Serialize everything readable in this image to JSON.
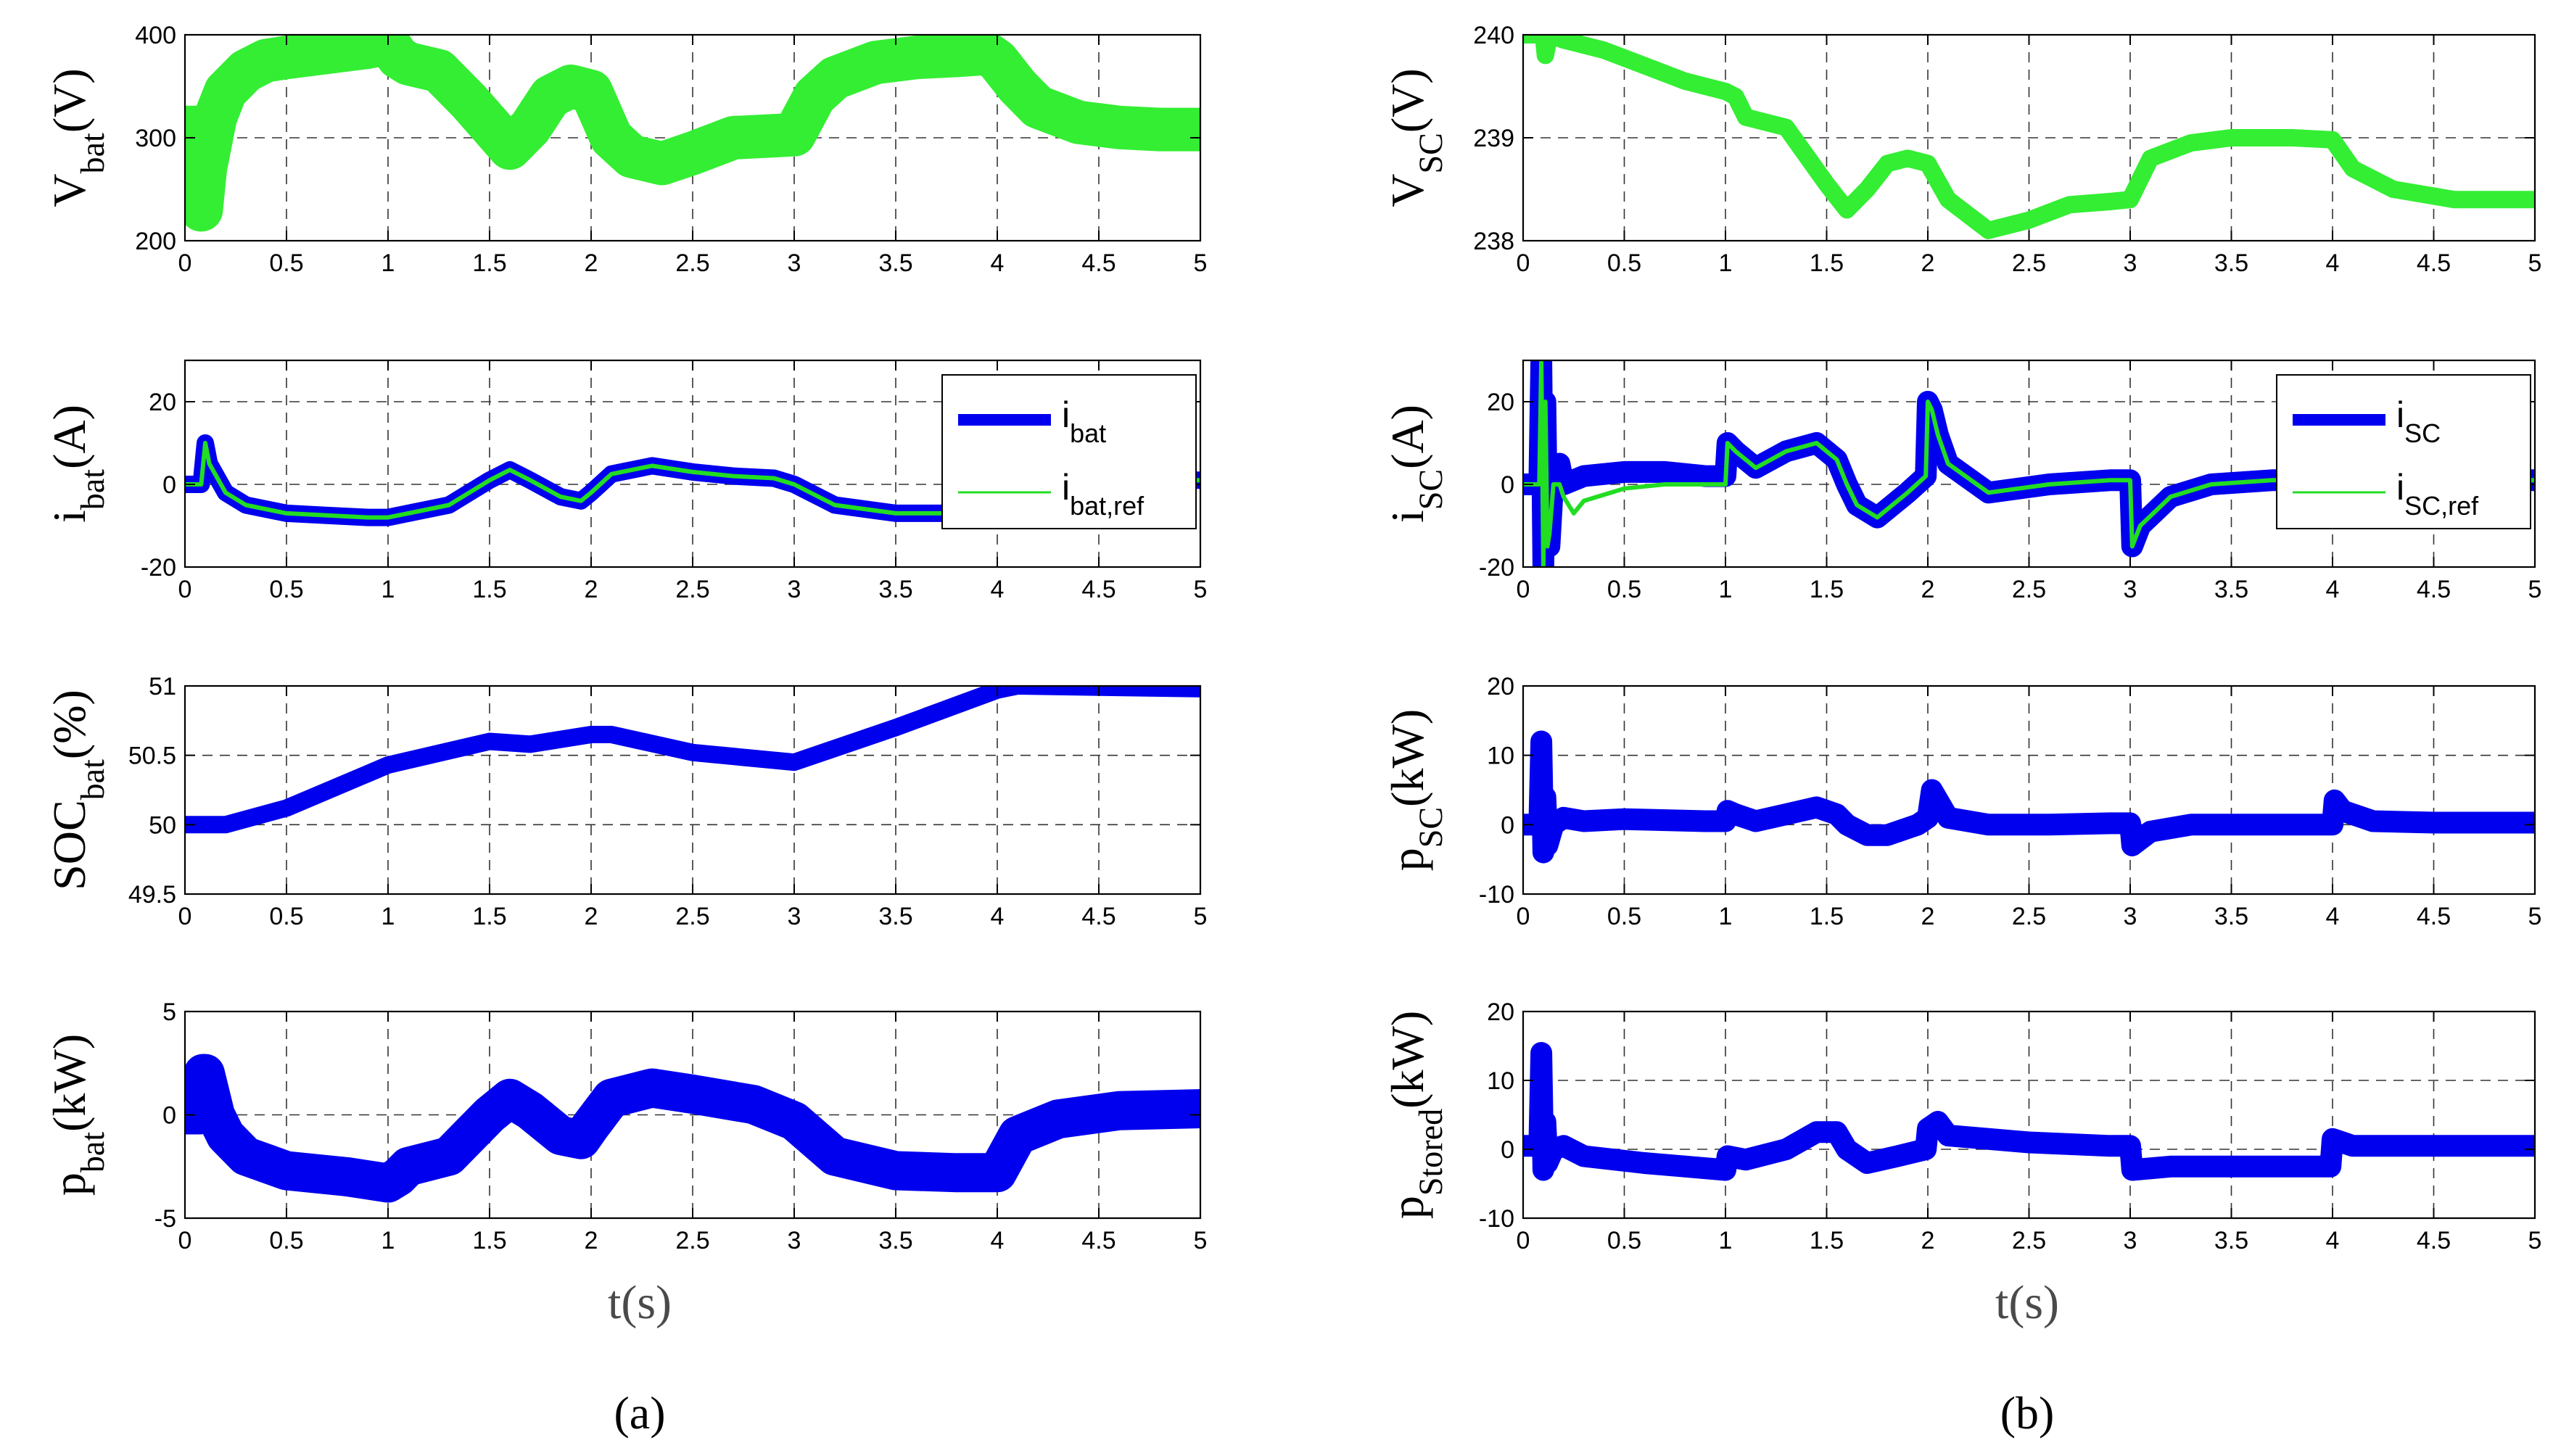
{
  "colors": {
    "battery_trace": "#33ee33",
    "blue_trace": "#0000ee",
    "green_ref": "#22dd22",
    "grid": "#333333"
  },
  "panel_labels": {
    "a": "(a)",
    "b": "(b)"
  },
  "xlabel": "t(s)",
  "chart_data": [
    {
      "type": "line",
      "panel": "a",
      "row": 1,
      "ylabel": {
        "main": "V",
        "sub": "bat",
        "unit": "(V)"
      },
      "xlim": [
        0,
        5
      ],
      "ylim": [
        200,
        400
      ],
      "xticks": [
        "0",
        "0.5",
        "1",
        "1.5",
        "2",
        "2.5",
        "3",
        "3.5",
        "4",
        "4.5",
        "5"
      ],
      "yticks": [
        "200",
        "300",
        "400"
      ],
      "grid": true,
      "series": [
        {
          "color": "#33ee33",
          "band": 10,
          "x": [
            0,
            0.07,
            0.08,
            0.1,
            0.15,
            0.2,
            0.3,
            0.4,
            0.5,
            0.7,
            0.9,
            1.0,
            1.05,
            1.1,
            1.25,
            1.4,
            1.6,
            1.7,
            1.8,
            1.9,
            2.0,
            2.1,
            2.2,
            2.35,
            2.5,
            2.7,
            2.9,
            3.0,
            3.1,
            3.2,
            3.4,
            3.6,
            3.8,
            3.95,
            4.0,
            4.1,
            4.2,
            4.4,
            4.6,
            4.8,
            5.0
          ],
          "y": [
            310,
            310,
            230,
            270,
            320,
            345,
            365,
            375,
            378,
            383,
            388,
            392,
            378,
            372,
            365,
            335,
            290,
            310,
            340,
            350,
            345,
            300,
            282,
            275,
            285,
            300,
            302,
            303,
            340,
            358,
            373,
            378,
            380,
            382,
            375,
            350,
            330,
            315,
            310,
            308,
            308
          ]
        }
      ]
    },
    {
      "type": "line",
      "panel": "a",
      "row": 2,
      "ylabel": {
        "main": "i",
        "sub": "bat",
        "unit": "(A)"
      },
      "xlim": [
        0,
        5
      ],
      "ylim": [
        -20,
        30
      ],
      "xticks": [
        "0",
        "0.5",
        "1",
        "1.5",
        "2",
        "2.5",
        "3",
        "3.5",
        "4",
        "4.5",
        "5"
      ],
      "yticks": [
        "-20",
        "0",
        "20"
      ],
      "grid": true,
      "legend": {
        "position": "top-right",
        "entries": [
          {
            "main": "i",
            "sub": "bat"
          },
          {
            "main": "i",
            "sub": "bat,ref"
          }
        ]
      },
      "series": [
        {
          "color": "#0000ee",
          "band": 4,
          "x": [
            0,
            0.08,
            0.1,
            0.12,
            0.2,
            0.3,
            0.5,
            0.7,
            0.9,
            1.0,
            1.1,
            1.3,
            1.5,
            1.6,
            1.7,
            1.85,
            1.95,
            2.0,
            2.1,
            2.3,
            2.5,
            2.7,
            2.9,
            3.0,
            3.2,
            3.5,
            3.8,
            4.0,
            4.2,
            4.5,
            4.8,
            5.0
          ],
          "y": [
            0,
            0,
            10,
            5,
            -2,
            -5,
            -7,
            -7.5,
            -8,
            -8,
            -7,
            -5,
            1,
            3.5,
            1,
            -3,
            -4,
            -2,
            2.5,
            4.5,
            3,
            2,
            1.5,
            0,
            -5,
            -7,
            -7,
            -7,
            -3,
            -1,
            1,
            1
          ]
        },
        {
          "color": "#22dd22",
          "band": 1,
          "x": [
            0,
            0.08,
            0.1,
            0.12,
            0.2,
            0.3,
            0.5,
            0.7,
            0.9,
            1.0,
            1.1,
            1.3,
            1.5,
            1.6,
            1.7,
            1.85,
            1.95,
            2.0,
            2.1,
            2.3,
            2.5,
            2.7,
            2.9,
            3.0,
            3.2,
            3.5,
            3.8,
            4.0,
            4.2,
            4.5,
            4.8,
            5.0
          ],
          "y": [
            0,
            0,
            10,
            5,
            -2,
            -5,
            -7,
            -7.5,
            -8,
            -8,
            -7,
            -5,
            1,
            3.5,
            1,
            -3,
            -4,
            -2,
            2.5,
            4.5,
            3,
            2,
            1.5,
            0,
            -5,
            -7,
            -7,
            -7,
            -3,
            -1,
            1,
            1
          ]
        }
      ]
    },
    {
      "type": "line",
      "panel": "a",
      "row": 3,
      "ylabel": {
        "main": "SOC",
        "sub": "bat",
        "unit": "(%)"
      },
      "xlim": [
        0,
        5
      ],
      "ylim": [
        49.5,
        51
      ],
      "xticks": [
        "0",
        "0.5",
        "1",
        "1.5",
        "2",
        "2.5",
        "3",
        "3.5",
        "4",
        "4.5",
        "5"
      ],
      "yticks": [
        "49.5",
        "50",
        "50.5",
        "51"
      ],
      "grid": true,
      "series": [
        {
          "color": "#0000ee",
          "band": 4,
          "x": [
            0,
            0.1,
            0.2,
            0.5,
            1.0,
            1.5,
            1.7,
            2.0,
            2.1,
            2.5,
            3.0,
            3.5,
            4.0,
            4.1,
            5.0
          ],
          "y": [
            50,
            50,
            50,
            50.12,
            50.43,
            50.6,
            50.58,
            50.65,
            50.65,
            50.52,
            50.45,
            50.7,
            50.97,
            51,
            50.98
          ]
        }
      ]
    },
    {
      "type": "line",
      "panel": "a",
      "row": 4,
      "ylabel": {
        "main": "p",
        "sub": "bat",
        "unit": "(kW)"
      },
      "xlim": [
        0,
        5
      ],
      "ylim": [
        -5,
        5
      ],
      "xticks": [
        "0",
        "0.5",
        "1",
        "1.5",
        "2",
        "2.5",
        "3",
        "3.5",
        "4",
        "4.5",
        "5"
      ],
      "yticks": [
        "-5",
        "0",
        "5"
      ],
      "grid": true,
      "series": [
        {
          "color": "#0000ee",
          "band": 9,
          "x": [
            0,
            0.07,
            0.09,
            0.1,
            0.15,
            0.2,
            0.3,
            0.5,
            0.8,
            1.0,
            1.05,
            1.1,
            1.3,
            1.5,
            1.6,
            1.7,
            1.85,
            1.95,
            2.0,
            2.1,
            2.3,
            2.5,
            2.8,
            3.0,
            3.2,
            3.5,
            3.8,
            4.0,
            4.1,
            4.3,
            4.6,
            5.0
          ],
          "y": [
            0,
            0,
            2,
            2,
            0,
            -1,
            -2,
            -2.7,
            -3,
            -3.3,
            -3,
            -2.5,
            -2,
            0,
            0.8,
            0.2,
            -1,
            -1.2,
            -0.5,
            0.8,
            1.3,
            1,
            0.5,
            -0.3,
            -2,
            -2.7,
            -2.8,
            -2.8,
            -1,
            -0.2,
            0.2,
            0.3
          ]
        }
      ]
    },
    {
      "type": "line",
      "panel": "b",
      "row": 1,
      "ylabel": {
        "main": "V",
        "sub": "SC",
        "unit": "(V)"
      },
      "xlim": [
        0,
        5
      ],
      "ylim": [
        238,
        240
      ],
      "xticks": [
        "0",
        "0.5",
        "1",
        "1.5",
        "2",
        "2.5",
        "3",
        "3.5",
        "4",
        "4.5",
        "5"
      ],
      "yticks": [
        "238",
        "239",
        "240"
      ],
      "grid": true,
      "series": [
        {
          "color": "#33ee33",
          "band": 4,
          "x": [
            0,
            0.1,
            0.11,
            0.13,
            0.2,
            0.4,
            0.6,
            0.8,
            1.0,
            1.05,
            1.1,
            1.3,
            1.5,
            1.6,
            1.7,
            1.8,
            1.9,
            2.0,
            2.1,
            2.3,
            2.5,
            2.7,
            2.9,
            3.0,
            3.1,
            3.3,
            3.5,
            3.8,
            4.0,
            4.1,
            4.3,
            4.6,
            5.0
          ],
          "y": [
            240,
            240,
            239.8,
            240,
            239.95,
            239.85,
            239.7,
            239.55,
            239.45,
            239.4,
            239.2,
            239.1,
            238.55,
            238.3,
            238.5,
            238.75,
            238.8,
            238.75,
            238.4,
            238.1,
            238.2,
            238.35,
            238.38,
            238.4,
            238.8,
            238.95,
            239,
            239,
            238.98,
            238.7,
            238.5,
            238.4,
            238.4
          ]
        }
      ]
    },
    {
      "type": "line",
      "panel": "b",
      "row": 2,
      "ylabel": {
        "main": "i",
        "sub": "SC",
        "unit": "(A)"
      },
      "xlim": [
        0,
        5
      ],
      "ylim": [
        -20,
        30
      ],
      "xticks": [
        "0",
        "0.5",
        "1",
        "1.5",
        "2",
        "2.5",
        "3",
        "3.5",
        "4",
        "4.5",
        "5"
      ],
      "yticks": [
        "-20",
        "0",
        "20"
      ],
      "grid": true,
      "legend": {
        "position": "top-right",
        "entries": [
          {
            "main": "i",
            "sub": "SC"
          },
          {
            "main": "i",
            "sub": "SC,ref"
          }
        ]
      },
      "series": [
        {
          "color": "#0000ee",
          "band": 5,
          "x": [
            0,
            0.08,
            0.09,
            0.1,
            0.11,
            0.12,
            0.13,
            0.15,
            0.18,
            0.2,
            0.3,
            0.5,
            0.7,
            0.9,
            1.0,
            1.01,
            1.05,
            1.15,
            1.3,
            1.45,
            1.55,
            1.6,
            1.65,
            1.75,
            1.9,
            1.99,
            2.0,
            2.02,
            2.05,
            2.1,
            2.3,
            2.6,
            2.9,
            3.0,
            3.01,
            3.05,
            3.2,
            3.4,
            3.7,
            4.0,
            4.2,
            4.5,
            4.8,
            5.0
          ],
          "y": [
            0,
            0,
            30,
            -20,
            20,
            -15,
            -15,
            2,
            5,
            0,
            2,
            3,
            3,
            2,
            2,
            10,
            8,
            4,
            8,
            10,
            6,
            0,
            -5,
            -8,
            -2,
            2,
            20,
            18,
            12,
            5,
            -2,
            0,
            1,
            1,
            -15,
            -10,
            -3,
            0,
            1,
            1,
            1,
            1,
            1,
            1
          ]
        },
        {
          "color": "#22dd22",
          "band": 1,
          "x": [
            0,
            0.08,
            0.09,
            0.1,
            0.11,
            0.12,
            0.13,
            0.15,
            0.18,
            0.2,
            0.25,
            0.3,
            0.5,
            0.7,
            0.9,
            1.0,
            1.01,
            1.05,
            1.15,
            1.3,
            1.45,
            1.55,
            1.6,
            1.65,
            1.75,
            1.9,
            1.99,
            2.0,
            2.02,
            2.05,
            2.1,
            2.3,
            2.6,
            2.9,
            3.0,
            3.01,
            3.05,
            3.2,
            3.4,
            3.7,
            4.0,
            4.2,
            4.5,
            4.8,
            5.0
          ],
          "y": [
            0,
            0,
            30,
            -20,
            20,
            -15,
            -12,
            0,
            0,
            -3,
            -7,
            -4,
            -1,
            0,
            0,
            0,
            10,
            8,
            4,
            8,
            10,
            6,
            0,
            -5,
            -8,
            -2,
            2,
            20,
            18,
            12,
            5,
            -2,
            0,
            1,
            1,
            -15,
            -10,
            -3,
            0,
            1,
            1,
            1,
            1,
            1,
            1
          ]
        }
      ]
    },
    {
      "type": "line",
      "panel": "b",
      "row": 3,
      "ylabel": {
        "main": "p",
        "sub": "SC",
        "unit": "(kW)"
      },
      "xlim": [
        0,
        5
      ],
      "ylim": [
        -10,
        20
      ],
      "xticks": [
        "0",
        "0.5",
        "1",
        "1.5",
        "2",
        "2.5",
        "3",
        "3.5",
        "4",
        "4.5",
        "5"
      ],
      "yticks": [
        "-10",
        "0",
        "10",
        "20"
      ],
      "grid": true,
      "series": [
        {
          "color": "#0000ee",
          "band": 5,
          "x": [
            0,
            0.08,
            0.09,
            0.1,
            0.11,
            0.12,
            0.15,
            0.2,
            0.3,
            0.5,
            0.9,
            1.0,
            1.01,
            1.05,
            1.15,
            1.3,
            1.45,
            1.55,
            1.6,
            1.7,
            1.8,
            1.95,
            2.0,
            2.02,
            2.1,
            2.3,
            2.6,
            2.9,
            3.0,
            3.01,
            3.1,
            3.3,
            3.6,
            4.0,
            4.01,
            4.05,
            4.2,
            4.5,
            5.0
          ],
          "y": [
            0,
            0,
            12,
            -4,
            4,
            -3,
            0,
            1,
            0.5,
            0.8,
            0.5,
            0.5,
            2,
            1.5,
            0.5,
            1.5,
            2.5,
            1.5,
            0,
            -1.5,
            -1.5,
            0,
            1,
            5,
            1,
            0,
            0,
            0.2,
            0.2,
            -3,
            -1,
            0,
            0,
            0,
            3.5,
            2,
            0.5,
            0.3,
            0.3
          ]
        }
      ]
    },
    {
      "type": "line",
      "panel": "b",
      "row": 4,
      "ylabel": {
        "main": "p",
        "sub": "Stored",
        "unit": "(kW)"
      },
      "xlim": [
        0,
        5
      ],
      "ylim": [
        -10,
        20
      ],
      "xticks": [
        "0",
        "0.5",
        "1",
        "1.5",
        "2",
        "2.5",
        "3",
        "3.5",
        "4",
        "4.5",
        "5"
      ],
      "yticks": [
        "-10",
        "0",
        "10",
        "20"
      ],
      "grid": true,
      "series": [
        {
          "color": "#0000ee",
          "band": 5,
          "x": [
            0,
            0.08,
            0.09,
            0.1,
            0.11,
            0.12,
            0.15,
            0.2,
            0.3,
            0.6,
            1.0,
            1.01,
            1.1,
            1.3,
            1.45,
            1.55,
            1.6,
            1.7,
            1.85,
            1.99,
            2.0,
            2.05,
            2.1,
            2.5,
            2.9,
            3.0,
            3.01,
            3.2,
            3.6,
            3.99,
            4.0,
            4.05,
            4.1,
            4.5,
            5.0
          ],
          "y": [
            0.5,
            0.5,
            14,
            -3,
            4,
            -2,
            0,
            0.5,
            -1,
            -2,
            -3,
            -1,
            -1.5,
            0,
            2.5,
            2.5,
            0,
            -2,
            -1,
            0,
            3,
            4,
            2,
            1,
            0.5,
            0.5,
            -3,
            -2.5,
            -2.5,
            -2.5,
            1.5,
            1,
            0.5,
            0.5,
            0.5
          ]
        }
      ]
    }
  ]
}
